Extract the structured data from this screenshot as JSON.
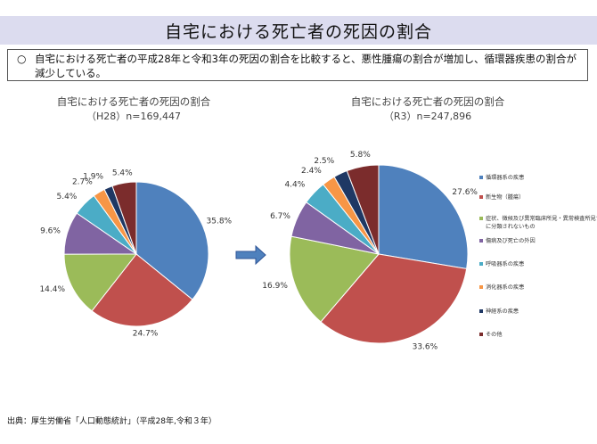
{
  "page_title": "自宅における死亡者の死因の割合",
  "summary": {
    "bullet": "○",
    "text": "自宅における死亡者の平成28年と令和3年の死因の割合を比較すると、悪性腫瘍の割合が増加し、循環器疾患の割合が減少している。"
  },
  "source": "出典：厚生労働省「人口動態統計」（平成28年,令和３年）",
  "colors": {
    "circulatory": "#4f81bd",
    "neoplasm": "#c0504d",
    "symptoms": "#9bbb59",
    "senility": "#8064a2",
    "respiratory": "#4bacc6",
    "digestive": "#f79646",
    "nervous": "#1f3864",
    "other": "#7b2c2c"
  },
  "chart_data": [
    {
      "type": "pie",
      "title": "自宅における死亡者の死因の割合",
      "subtitle": "（H28）n=169,447",
      "categories": [
        "循環器系の疾患",
        "新生物（腫瘍）",
        "症状、徴候及び異常臨床所見・異常検査所見で他に分類されないもの",
        "傷病及び死亡の外因",
        "呼吸器系の疾患",
        "消化器系の疾患",
        "神経系の疾患",
        "その他"
      ],
      "values": [
        35.8,
        24.7,
        14.4,
        9.6,
        5.4,
        2.7,
        1.9,
        5.4
      ],
      "labels": [
        "35.8%",
        "24.7%",
        "14.4%",
        "9.6%",
        "5.4%",
        "2.7%",
        "1.9%",
        "5.4%"
      ]
    },
    {
      "type": "pie",
      "title": "自宅における死亡者の死因の割合",
      "subtitle": "（R3）n=247,896",
      "categories": [
        "循環器系の疾患",
        "新生物（腫瘍）",
        "症状、徴候及び異常臨床所見・異常検査所見で他に分類されないもの",
        "傷病及び死亡の外因",
        "呼吸器系の疾患",
        "消化器系の疾患",
        "神経系の疾患",
        "その他"
      ],
      "values": [
        27.6,
        33.6,
        16.9,
        6.7,
        4.4,
        2.4,
        2.5,
        5.8
      ],
      "labels": [
        "27.6%",
        "33.6%",
        "16.9%",
        "6.7%",
        "4.4%",
        "2.4%",
        "2.5%",
        "5.8%"
      ]
    }
  ],
  "legend": {
    "items": [
      {
        "label": "循環器系の疾患",
        "color_key": "circulatory"
      },
      {
        "label": "新生物（腫瘍）",
        "color_key": "neoplasm"
      },
      {
        "label": "症状、徴候及び異常臨床所見・異常検査所見で他に分類されないもの",
        "color_key": "symptoms"
      },
      {
        "label": "傷病及び死亡の外因",
        "color_key": "senility"
      },
      {
        "label": "呼吸器系の疾患",
        "color_key": "respiratory"
      },
      {
        "label": "消化器系の疾患",
        "color_key": "digestive"
      },
      {
        "label": "神経系の疾患",
        "color_key": "nervous"
      },
      {
        "label": "その他",
        "color_key": "other"
      }
    ]
  }
}
